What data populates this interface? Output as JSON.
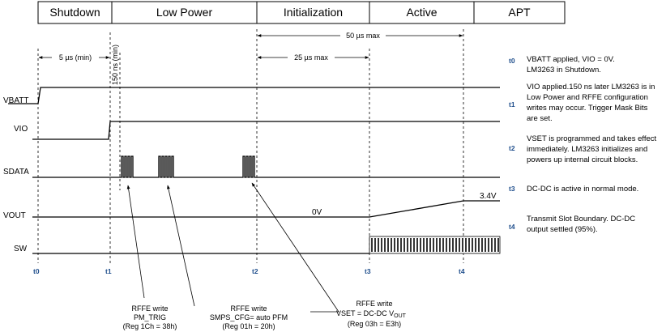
{
  "phases": [
    {
      "label": "Shutdown"
    },
    {
      "label": "Low Power"
    },
    {
      "label": "Initialization"
    },
    {
      "label": "Active"
    },
    {
      "label": "APT"
    }
  ],
  "signals": {
    "vbatt": "VBATT",
    "vio": "VIO",
    "sdata": "SDATA",
    "vout": "VOUT",
    "sw": "SW"
  },
  "time_markers": [
    "t0",
    "t1",
    "t2",
    "t3",
    "t4"
  ],
  "dimensions": {
    "d_5us": "5 µs (min)",
    "d_150ns": "150 ns (min)",
    "d_25us": "25 µs max",
    "d_50us": "50 µs max"
  },
  "levels": {
    "vout_0v": "0V",
    "vout_34v": "3.4V"
  },
  "callouts": [
    {
      "title": "RFFE write",
      "cmd": "PM_TRIG",
      "reg": "(Reg 1Ch = 38h)"
    },
    {
      "title": "RFFE write",
      "cmd": "SMPS_CFG= auto PFM",
      "reg": "(Reg 01h = 20h)"
    },
    {
      "title": "RFFE write",
      "cmd": "VSET = DC-DC V",
      "cmd_sub": "OUT",
      "reg": "(Reg 03h = E3h)"
    }
  ],
  "notes": [
    {
      "tag": "t0",
      "lines": [
        "VBATT applied, VIO = 0V.",
        "LM3263 in Shutdown."
      ]
    },
    {
      "tag": "t1",
      "lines": [
        "VIO applied.150 ns later LM3263 is in",
        "Low Power and RFFE configuration",
        "writes may occur. Trigger Mask Bits",
        "are set."
      ]
    },
    {
      "tag": "t2",
      "lines": [
        "VSET is programmed and takes effect",
        "immediately. LM3263 initializes and",
        "powers up internal circuit blocks."
      ]
    },
    {
      "tag": "t3",
      "lines": [
        "DC-DC is active in normal mode."
      ]
    },
    {
      "tag": "t4",
      "lines": [
        "Transmit Slot Boundary. DC-DC",
        "output settled (95%)."
      ]
    }
  ]
}
